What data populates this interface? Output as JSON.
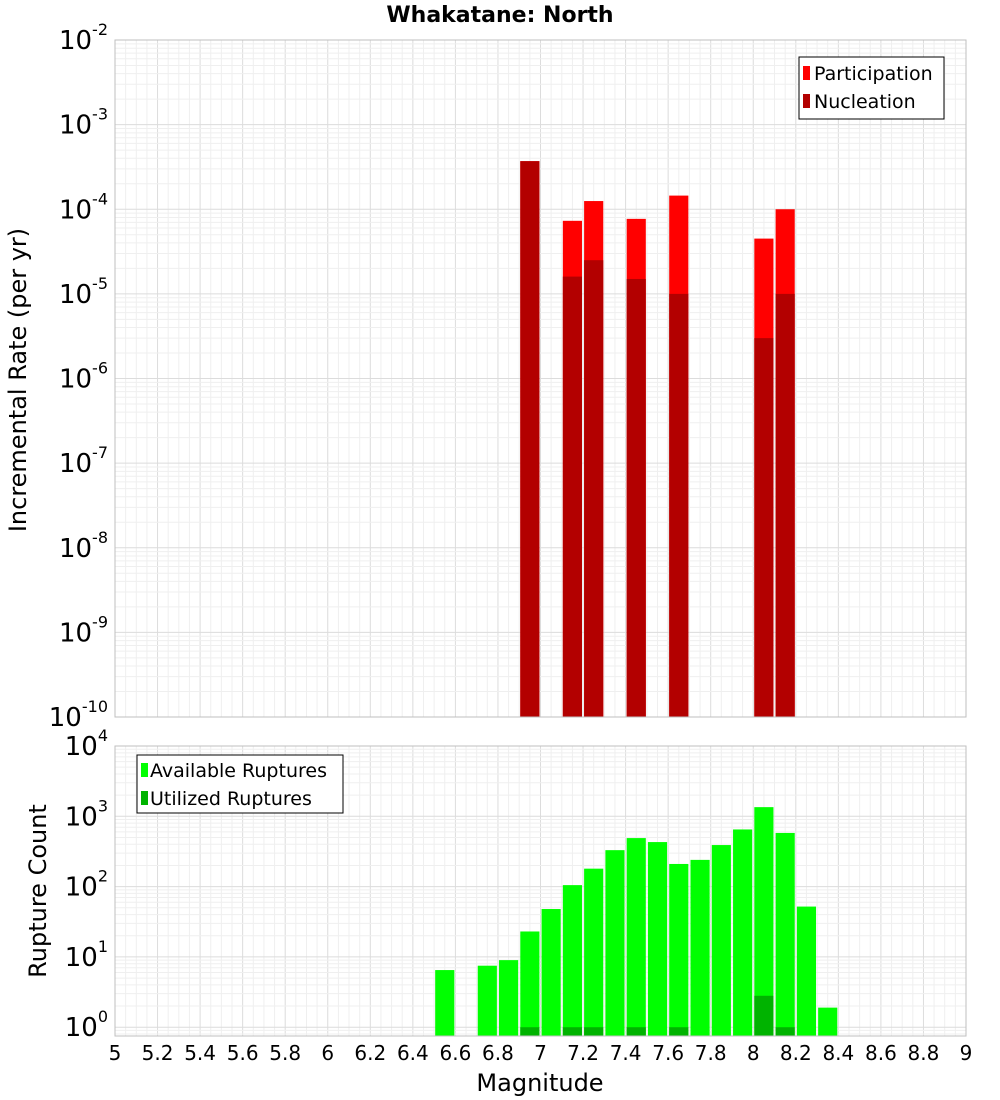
{
  "chart_data": [
    {
      "type": "bar",
      "title": "Whakatane: North",
      "xlabel": "",
      "ylabel": "Incremental Rate (per yr)",
      "yscale": "log",
      "ylim": [
        1e-10,
        0.01
      ],
      "xlim": [
        5,
        9
      ],
      "grid": true,
      "legend_placement": "top-right",
      "ytick_labels": [
        {
          "base": "10",
          "exp": "-2"
        },
        {
          "base": "10",
          "exp": "-3"
        },
        {
          "base": "10",
          "exp": "-4"
        },
        {
          "base": "10",
          "exp": "-5"
        },
        {
          "base": "10",
          "exp": "-6"
        },
        {
          "base": "10",
          "exp": "-7"
        },
        {
          "base": "10",
          "exp": "-8"
        },
        {
          "base": "10",
          "exp": "-9"
        },
        {
          "base": "10",
          "exp": "-10"
        }
      ],
      "bar_width": 0.09,
      "series": [
        {
          "name": "Participation",
          "color": "#ff0000",
          "x": [
            6.95,
            7.15,
            7.25,
            7.45,
            7.65,
            8.05,
            8.15
          ],
          "values": [
            0.00037,
            7.3e-05,
            0.000125,
            7.7e-05,
            0.000145,
            4.5e-05,
            0.0001
          ]
        },
        {
          "name": "Nucleation",
          "color": "#b30000",
          "x": [
            6.95,
            7.15,
            7.25,
            7.45,
            7.65,
            8.05,
            8.15
          ],
          "values": [
            0.00037,
            1.6e-05,
            2.5e-05,
            1.5e-05,
            1e-05,
            3e-06,
            1e-05
          ]
        }
      ]
    },
    {
      "type": "bar",
      "title": "",
      "xlabel": "Magnitude",
      "ylabel": "Rupture Count",
      "yscale": "log",
      "ylim": [
        0.75,
        10000
      ],
      "xlim": [
        5,
        9
      ],
      "grid": true,
      "legend_placement": "top-left",
      "x_ticks": [
        "5",
        "5.2",
        "5.4",
        "5.6",
        "5.8",
        "6",
        "6.2",
        "6.4",
        "6.6",
        "6.8",
        "7",
        "7.2",
        "7.4",
        "7.6",
        "7.8",
        "8",
        "8.2",
        "8.4",
        "8.6",
        "8.8",
        "9"
      ],
      "ytick_labels": [
        {
          "base": "10",
          "exp": "4"
        },
        {
          "base": "10",
          "exp": "3"
        },
        {
          "base": "10",
          "exp": "2"
        },
        {
          "base": "10",
          "exp": "1"
        },
        {
          "base": "10",
          "exp": "0"
        }
      ],
      "bar_width": 0.09,
      "series": [
        {
          "name": "Available Ruptures",
          "color": "#00ff00",
          "x": [
            6.55,
            6.75,
            6.85,
            6.95,
            7.05,
            7.15,
            7.25,
            7.35,
            7.45,
            7.55,
            7.65,
            7.75,
            7.85,
            7.95,
            8.05,
            8.15,
            8.25,
            8.35
          ],
          "values": [
            6.5,
            7.5,
            9,
            23,
            48,
            105,
            180,
            330,
            490,
            430,
            210,
            240,
            390,
            650,
            1350,
            580,
            52,
            1.9
          ]
        },
        {
          "name": "Utilized Ruptures",
          "color": "#00b300",
          "x": [
            6.95,
            7.15,
            7.25,
            7.45,
            7.65,
            8.05,
            8.15
          ],
          "values": [
            1,
            1,
            1,
            1,
            1,
            2.8,
            1
          ]
        }
      ]
    }
  ]
}
